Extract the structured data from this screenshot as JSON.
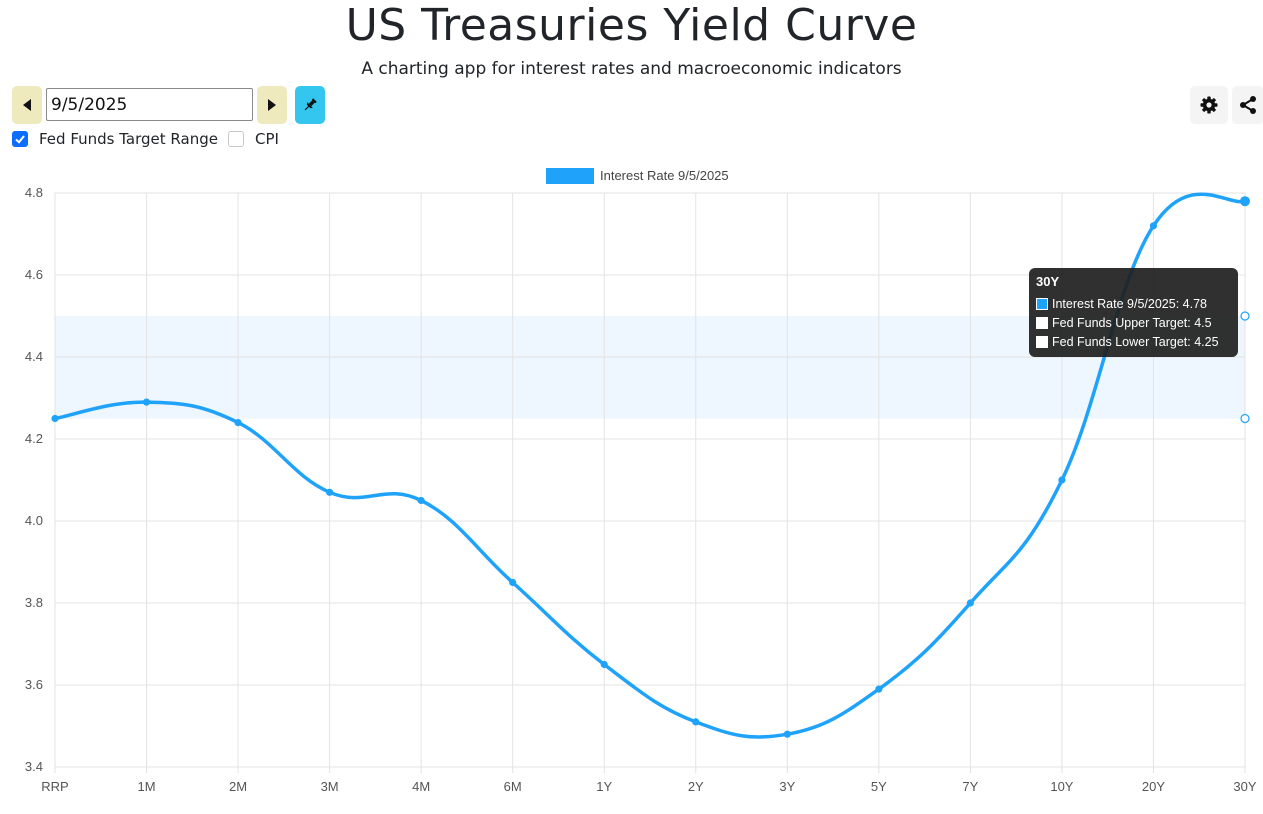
{
  "header": {
    "title": "US Treasuries Yield Curve",
    "subtitle": "A charting app for interest rates and macroeconomic indicators"
  },
  "controls": {
    "date_value": "9/5/2025",
    "prev_icon": "caret-left-icon",
    "next_icon": "caret-right-icon",
    "pin_icon": "pin-icon",
    "settings_icon": "gear-icon",
    "share_icon": "share-icon",
    "checkboxes": [
      {
        "label": "Fed Funds Target Range",
        "checked": true
      },
      {
        "label": "CPI",
        "checked": false
      }
    ]
  },
  "colors": {
    "series": "#1fa3fa",
    "band": "#eef6ff",
    "accent_prev_next": "#eeeabe",
    "accent_pin": "#34c6ef",
    "checkbox": "#0d6efd"
  },
  "chart_data": {
    "type": "line",
    "categories": [
      "RRP",
      "1M",
      "2M",
      "3M",
      "4M",
      "6M",
      "1Y",
      "2Y",
      "3Y",
      "5Y",
      "7Y",
      "10Y",
      "20Y",
      "30Y"
    ],
    "series": [
      {
        "name": "Interest Rate 9/5/2025",
        "values": [
          4.25,
          4.29,
          4.24,
          4.07,
          4.05,
          3.85,
          3.65,
          3.51,
          3.48,
          3.59,
          3.8,
          4.1,
          4.72,
          4.78
        ]
      }
    ],
    "fed_funds": {
      "upper": 4.5,
      "lower": 4.25
    },
    "legend": [
      "Interest Rate 9/5/2025"
    ],
    "ylim": [
      3.4,
      4.8
    ],
    "yticks": [
      "4.8",
      "4.6",
      "4.4",
      "4.2",
      "4.0",
      "3.8",
      "3.6",
      "3.4"
    ],
    "grid": true,
    "legend_position": "top",
    "tooltip": {
      "title": "30Y",
      "rows": [
        "Interest Rate 9/5/2025: 4.78",
        "Fed Funds Upper Target: 4.5",
        "Fed Funds Lower Target: 4.25"
      ]
    }
  }
}
